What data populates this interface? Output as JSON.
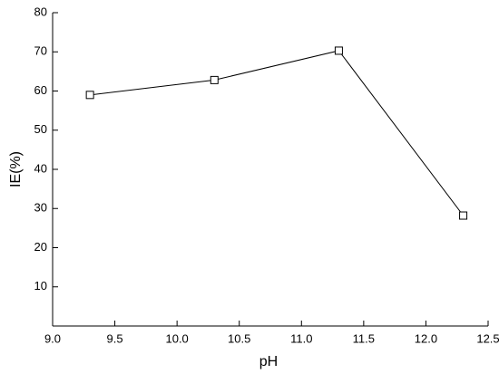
{
  "chart_data": {
    "type": "line",
    "x_label": "pH",
    "y_label": "IE(%)",
    "x": [
      9.3,
      10.3,
      11.3,
      12.3
    ],
    "series": [
      {
        "color": "#000000",
        "values": [
          59,
          62.8,
          70.3,
          28.2
        ]
      }
    ],
    "xlim": [
      9.0,
      12.5
    ],
    "xticks": [
      {
        "value": 9.0,
        "label": "9.0"
      },
      9.5,
      {
        "value": 10.0,
        "label": "10.0"
      },
      10.5,
      {
        "value": 11.0,
        "label": "11.0"
      },
      11.5,
      {
        "value": 12.0,
        "label": "12.0"
      },
      12.5
    ],
    "ylim": [
      0,
      80
    ],
    "yticks": [
      10,
      20,
      30,
      40,
      50,
      60,
      70,
      80
    ],
    "marker": "square"
  }
}
